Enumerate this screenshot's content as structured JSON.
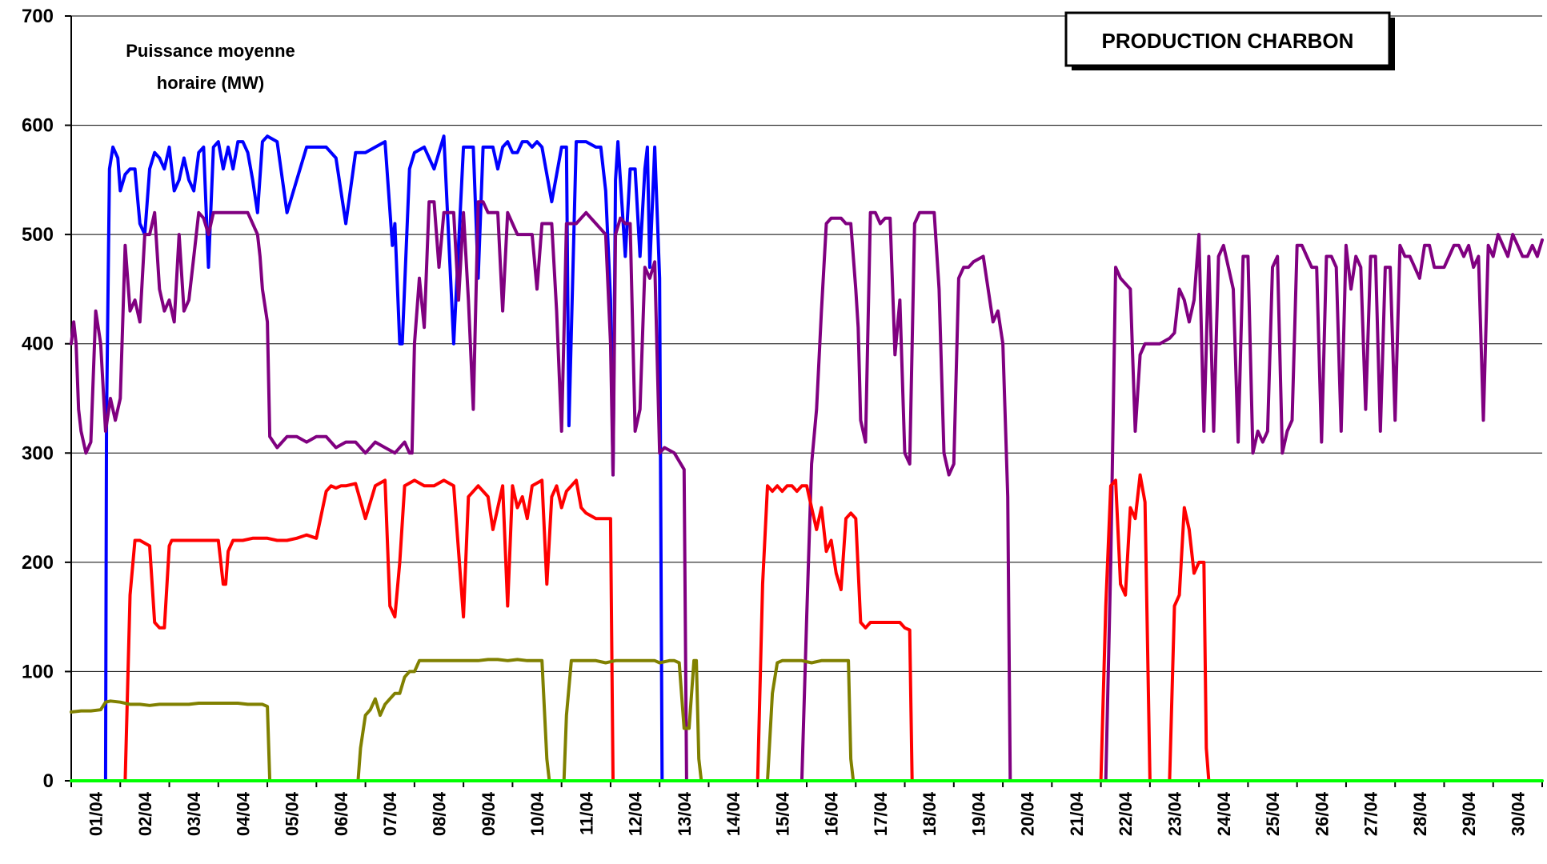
{
  "chart_data": {
    "type": "line",
    "title": "PRODUCTION CHARBON",
    "ylabel": "Puissance moyenne horaire (MW)",
    "ylabel_lines": [
      "Puissance moyenne",
      "horaire (MW)"
    ],
    "xlabel": "",
    "ylim": [
      0,
      700
    ],
    "xlim": [
      1,
      31
    ],
    "yticks": [
      0,
      100,
      200,
      300,
      400,
      500,
      600,
      700
    ],
    "x_tick_labels": [
      "01/04",
      "02/04",
      "03/04",
      "04/04",
      "05/04",
      "06/04",
      "07/04",
      "08/04",
      "09/04",
      "10/04",
      "11/04",
      "12/04",
      "13/04",
      "14/04",
      "15/04",
      "16/04",
      "17/04",
      "18/04",
      "19/04",
      "20/04",
      "21/04",
      "22/04",
      "23/04",
      "24/04",
      "25/04",
      "26/04",
      "27/04",
      "28/04",
      "29/04",
      "30/04"
    ],
    "grid": "horizontal",
    "legend": "none",
    "x_unit_note": "x is the day of April (01/04 = 1)",
    "series": [
      {
        "color": "#0000ff",
        "x": [
          1.7,
          1.72,
          1.78,
          1.85,
          1.95,
          2.0,
          2.1,
          2.2,
          2.3,
          2.4,
          2.5,
          2.6,
          2.7,
          2.8,
          2.9,
          3.0,
          3.1,
          3.2,
          3.3,
          3.4,
          3.5,
          3.6,
          3.7,
          3.8,
          3.9,
          4.0,
          4.1,
          4.2,
          4.3,
          4.4,
          4.5,
          4.6,
          4.7,
          4.8,
          4.9,
          5.0,
          5.2,
          5.4,
          5.6,
          5.8,
          6.0,
          6.2,
          6.4,
          6.6,
          6.8,
          7.0,
          7.2,
          7.4,
          7.55,
          7.6,
          7.7,
          7.75,
          7.9,
          8.0,
          8.2,
          8.4,
          8.6,
          8.8,
          9.0,
          9.1,
          9.2,
          9.3,
          9.4,
          9.5,
          9.6,
          9.7,
          9.8,
          9.9,
          10.0,
          10.1,
          10.2,
          10.3,
          10.4,
          10.5,
          10.6,
          10.8,
          11.0,
          11.1,
          11.15,
          11.3,
          11.5,
          11.7,
          11.8,
          11.9,
          12.0,
          12.05,
          12.1,
          12.15,
          12.2,
          12.3,
          12.4,
          12.5,
          12.6,
          12.7,
          12.75,
          12.8,
          12.9,
          13.0,
          13.05
        ],
        "y": [
          0,
          330,
          560,
          580,
          570,
          540,
          555,
          560,
          560,
          510,
          500,
          560,
          575,
          570,
          560,
          580,
          540,
          550,
          570,
          550,
          540,
          575,
          580,
          470,
          580,
          585,
          560,
          580,
          560,
          585,
          585,
          575,
          550,
          520,
          585,
          590,
          585,
          520,
          550,
          580,
          580,
          580,
          570,
          510,
          575,
          575,
          580,
          585,
          490,
          510,
          400,
          400,
          560,
          575,
          580,
          560,
          590,
          400,
          580,
          580,
          580,
          460,
          580,
          580,
          580,
          560,
          580,
          585,
          575,
          575,
          585,
          585,
          580,
          585,
          580,
          530,
          580,
          580,
          325,
          585,
          585,
          580,
          580,
          540,
          440,
          280,
          550,
          585,
          550,
          480,
          560,
          560,
          480,
          560,
          580,
          470,
          580,
          460,
          0
        ]
      },
      {
        "color": "#800080",
        "x": [
          1.0,
          1.05,
          1.1,
          1.15,
          1.2,
          1.3,
          1.4,
          1.5,
          1.6,
          1.7,
          1.8,
          1.9,
          2.0,
          2.1,
          2.2,
          2.3,
          2.4,
          2.5,
          2.6,
          2.7,
          2.8,
          2.9,
          3.0,
          3.1,
          3.2,
          3.3,
          3.4,
          3.5,
          3.6,
          3.7,
          3.8,
          3.9,
          4.0,
          4.2,
          4.4,
          4.6,
          4.8,
          4.85,
          4.9,
          5.0,
          5.05,
          5.2,
          5.4,
          5.6,
          5.8,
          6.0,
          6.2,
          6.4,
          6.6,
          6.8,
          7.0,
          7.2,
          7.4,
          7.6,
          7.8,
          7.9,
          7.95,
          8.0,
          8.1,
          8.2,
          8.3,
          8.4,
          8.5,
          8.6,
          8.7,
          8.8,
          8.9,
          9.0,
          9.1,
          9.2,
          9.3,
          9.4,
          9.5,
          9.6,
          9.7,
          9.8,
          9.9,
          10.0,
          10.1,
          10.2,
          10.3,
          10.4,
          10.5,
          10.6,
          10.7,
          10.8,
          10.9,
          11.0,
          11.05,
          11.1,
          11.2,
          11.3,
          11.5,
          11.7,
          11.9,
          12.0,
          12.05,
          12.1,
          12.2,
          12.3,
          12.4,
          12.5,
          12.6,
          12.7,
          12.8,
          12.9,
          13.0,
          13.1,
          13.3,
          13.5,
          13.55
        ],
        "y": [
          400,
          420,
          400,
          340,
          320,
          300,
          310,
          430,
          400,
          320,
          350,
          330,
          350,
          490,
          430,
          440,
          420,
          500,
          500,
          520,
          450,
          430,
          440,
          420,
          500,
          430,
          440,
          480,
          520,
          515,
          500,
          520,
          520,
          520,
          520,
          520,
          500,
          480,
          450,
          420,
          315,
          305,
          315,
          315,
          310,
          315,
          315,
          305,
          310,
          310,
          300,
          310,
          305,
          300,
          310,
          300,
          300,
          400,
          460,
          415,
          530,
          530,
          470,
          520,
          520,
          520,
          440,
          520,
          440,
          340,
          530,
          530,
          520,
          520,
          520,
          430,
          520,
          510,
          500,
          500,
          500,
          500,
          450,
          510,
          510,
          510,
          430,
          320,
          410,
          510,
          510,
          510,
          520,
          510,
          500,
          400,
          280,
          500,
          515,
          510,
          510,
          320,
          340,
          470,
          460,
          475,
          300,
          305,
          300,
          285,
          0
        ]
      },
      {
        "color": "#800080",
        "x": [
          15.9,
          16.0,
          16.1,
          16.2,
          16.3,
          16.4,
          16.5,
          16.6,
          16.7,
          16.8,
          16.9,
          17.0,
          17.05,
          17.1,
          17.2,
          17.3,
          17.4,
          17.5,
          17.6,
          17.7,
          17.8,
          17.9,
          18.0,
          18.1,
          18.2,
          18.3,
          18.4,
          18.5,
          18.6,
          18.7,
          18.8,
          18.9,
          19.0,
          19.1,
          19.2,
          19.3,
          19.4,
          19.6,
          19.8,
          19.9,
          20.0,
          20.1,
          20.15,
          20.2,
          20.3
        ],
        "y": [
          0,
          150,
          290,
          340,
          430,
          510,
          515,
          515,
          515,
          510,
          510,
          450,
          415,
          330,
          310,
          520,
          520,
          510,
          515,
          515,
          390,
          440,
          300,
          290,
          510,
          520,
          520,
          520,
          520,
          450,
          300,
          280,
          290,
          460,
          470,
          470,
          475,
          480,
          420,
          430,
          400,
          260,
          0,
          0,
          0
        ]
      },
      {
        "color": "#800080",
        "x": [
          22.1,
          22.2,
          22.3,
          22.4,
          22.5,
          22.6,
          22.7,
          22.8,
          22.9,
          23.0,
          23.2,
          23.4,
          23.5,
          23.6,
          23.7,
          23.8,
          23.9,
          24.0,
          24.1,
          24.2,
          24.3,
          24.4,
          24.5,
          24.6,
          24.7,
          24.8,
          24.9,
          25.0,
          25.1,
          25.2,
          25.3,
          25.4,
          25.5,
          25.6,
          25.7,
          25.8,
          25.9,
          26.0,
          26.1,
          26.2,
          26.3,
          26.4,
          26.5,
          26.6,
          26.7,
          26.8,
          26.9,
          27.0,
          27.1,
          27.2,
          27.3,
          27.4,
          27.5,
          27.6,
          27.7,
          27.8,
          27.9,
          28.0,
          28.1,
          28.2,
          28.3,
          28.4,
          28.5,
          28.6,
          28.7,
          28.8,
          28.9,
          29.0,
          29.1,
          29.2,
          29.3,
          29.4,
          29.5,
          29.6,
          29.7,
          29.8,
          29.9,
          30.0,
          30.1,
          30.2,
          30.3,
          30.4,
          30.5,
          30.6,
          30.7,
          30.8,
          30.9,
          31.0
        ],
        "y": [
          0,
          200,
          470,
          460,
          455,
          450,
          320,
          390,
          400,
          400,
          400,
          405,
          410,
          450,
          440,
          420,
          440,
          500,
          320,
          480,
          320,
          480,
          490,
          470,
          450,
          310,
          480,
          480,
          300,
          320,
          310,
          320,
          470,
          480,
          300,
          320,
          330,
          490,
          490,
          480,
          470,
          470,
          310,
          480,
          480,
          470,
          320,
          490,
          450,
          480,
          470,
          340,
          480,
          480,
          320,
          470,
          470,
          330,
          490,
          480,
          480,
          470,
          460,
          490,
          490,
          470,
          470,
          470,
          480,
          490,
          490,
          480,
          490,
          470,
          480,
          330,
          490,
          480,
          500,
          490,
          480,
          500,
          490,
          480,
          480,
          490,
          480,
          495
        ]
      },
      {
        "color": "#ff0000",
        "x": [
          2.1,
          2.2,
          2.3,
          2.4,
          2.6,
          2.7,
          2.8,
          2.9,
          3.0,
          3.05,
          3.1,
          3.2,
          3.4,
          3.6,
          3.8,
          4.0,
          4.05,
          4.1,
          4.15,
          4.2,
          4.3,
          4.5,
          4.7,
          4.9,
          5.0,
          5.2,
          5.4,
          5.6,
          5.8,
          6.0,
          6.2,
          6.3,
          6.4,
          6.5,
          6.6,
          6.8,
          7.0,
          7.2,
          7.4,
          7.5,
          7.6,
          7.7,
          7.8,
          8.0,
          8.2,
          8.4,
          8.6,
          8.8,
          9.0,
          9.1,
          9.3,
          9.5,
          9.6,
          9.8,
          9.9,
          10.0,
          10.1,
          10.2,
          10.3,
          10.4,
          10.6,
          10.7,
          10.8,
          10.9,
          11.0,
          11.1,
          11.2,
          11.3,
          11.4,
          11.5,
          11.7,
          11.9,
          12.0,
          12.05
        ],
        "y": [
          0,
          170,
          220,
          220,
          215,
          145,
          140,
          140,
          215,
          220,
          220,
          220,
          220,
          220,
          220,
          220,
          200,
          180,
          180,
          210,
          220,
          220,
          222,
          222,
          222,
          220,
          220,
          222,
          225,
          222,
          265,
          270,
          268,
          270,
          270,
          272,
          240,
          270,
          275,
          160,
          150,
          200,
          270,
          275,
          270,
          270,
          275,
          270,
          150,
          260,
          270,
          260,
          230,
          270,
          160,
          270,
          250,
          260,
          240,
          270,
          275,
          180,
          260,
          270,
          250,
          265,
          270,
          275,
          250,
          245,
          240,
          240,
          240,
          0
        ]
      },
      {
        "color": "#ff0000",
        "x": [
          15.0,
          15.1,
          15.2,
          15.3,
          15.4,
          15.5,
          15.6,
          15.7,
          15.8,
          15.9,
          16.0,
          16.1,
          16.2,
          16.3,
          16.4,
          16.5,
          16.6,
          16.7,
          16.8,
          16.9,
          17.0,
          17.1,
          17.2,
          17.3,
          17.5,
          17.7,
          17.9,
          18.0,
          18.1,
          18.15
        ],
        "y": [
          0,
          180,
          270,
          265,
          270,
          265,
          270,
          270,
          265,
          270,
          270,
          250,
          230,
          250,
          210,
          220,
          190,
          175,
          240,
          245,
          240,
          145,
          140,
          145,
          145,
          145,
          145,
          140,
          138,
          0
        ]
      },
      {
        "color": "#ff0000",
        "x": [
          22.0,
          22.1,
          22.2,
          22.3,
          22.4,
          22.5,
          22.6,
          22.7,
          22.8,
          22.9,
          23.0
        ],
        "y": [
          0,
          160,
          270,
          275,
          180,
          170,
          250,
          240,
          280,
          255,
          0
        ]
      },
      {
        "color": "#ff0000",
        "x": [
          23.4,
          23.5,
          23.6,
          23.7,
          23.8,
          23.9,
          24.0,
          24.1,
          24.15,
          24.2
        ],
        "y": [
          0,
          160,
          170,
          250,
          230,
          190,
          200,
          200,
          30,
          0
        ]
      },
      {
        "color": "#808000",
        "x": [
          1.0,
          1.2,
          1.4,
          1.6,
          1.7,
          1.8,
          2.0,
          2.2,
          2.4,
          2.6,
          2.8,
          3.0,
          3.2,
          3.4,
          3.6,
          3.8,
          4.0,
          4.2,
          4.4,
          4.6,
          4.8,
          4.9,
          5.0,
          5.05
        ],
        "y": [
          63,
          64,
          64,
          65,
          72,
          73,
          72,
          70,
          70,
          69,
          70,
          70,
          70,
          70,
          71,
          71,
          71,
          71,
          71,
          70,
          70,
          70,
          68,
          0
        ]
      },
      {
        "color": "#808000",
        "x": [
          6.85,
          6.9,
          7.0,
          7.1,
          7.2,
          7.3,
          7.4,
          7.5,
          7.6,
          7.7,
          7.8,
          7.9,
          8.0,
          8.1,
          8.3,
          8.5,
          8.7,
          8.9,
          9.1,
          9.3,
          9.5,
          9.7,
          9.9,
          10.1,
          10.3,
          10.5,
          10.6,
          10.7,
          10.75
        ],
        "y": [
          0,
          30,
          60,
          65,
          75,
          60,
          70,
          75,
          80,
          80,
          95,
          100,
          100,
          110,
          110,
          110,
          110,
          110,
          110,
          110,
          111,
          111,
          110,
          111,
          110,
          110,
          110,
          20,
          0
        ]
      },
      {
        "color": "#808000",
        "x": [
          11.05,
          11.1,
          11.2,
          11.3,
          11.5,
          11.7,
          11.9,
          12.1,
          12.3,
          12.5,
          12.7,
          12.9,
          13.0,
          13.2,
          13.3,
          13.4,
          13.5,
          13.6,
          13.7,
          13.75,
          13.8,
          13.85
        ],
        "y": [
          0,
          60,
          110,
          110,
          110,
          110,
          108,
          110,
          110,
          110,
          110,
          110,
          108,
          110,
          110,
          108,
          48,
          48,
          110,
          110,
          20,
          0
        ]
      },
      {
        "color": "#808000",
        "x": [
          15.2,
          15.3,
          15.4,
          15.5,
          15.7,
          15.9,
          16.1,
          16.3,
          16.5,
          16.7,
          16.85,
          16.9,
          16.95
        ],
        "y": [
          0,
          80,
          108,
          110,
          110,
          110,
          108,
          110,
          110,
          110,
          110,
          20,
          0
        ]
      },
      {
        "color": "#00ff00",
        "x": [
          1,
          31
        ],
        "y": [
          0,
          0
        ]
      }
    ]
  }
}
